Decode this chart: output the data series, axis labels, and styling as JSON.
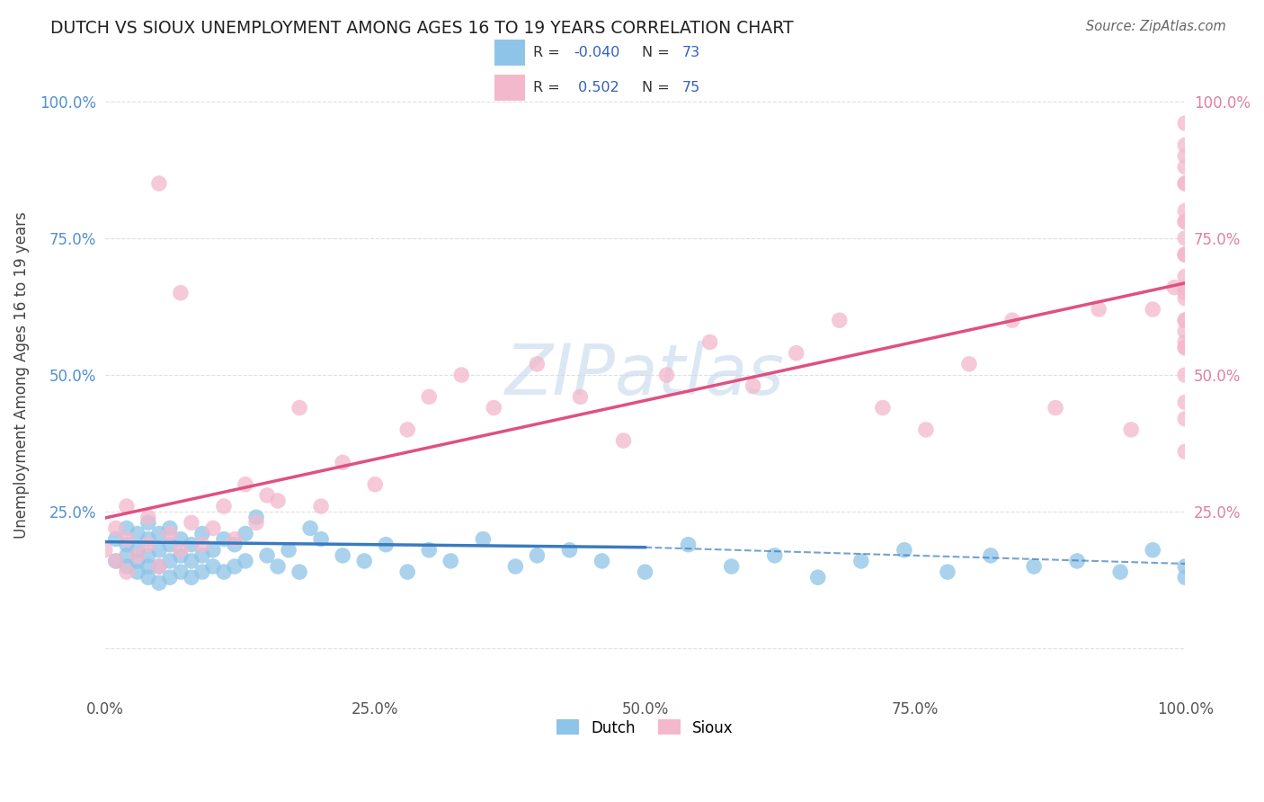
{
  "title": "DUTCH VS SIOUX UNEMPLOYMENT AMONG AGES 16 TO 19 YEARS CORRELATION CHART",
  "source": "Source: ZipAtlas.com",
  "ylabel": "Unemployment Among Ages 16 to 19 years",
  "xlim": [
    0.0,
    1.0
  ],
  "ylim": [
    -0.08,
    1.08
  ],
  "x_ticks": [
    0.0,
    0.25,
    0.5,
    0.75,
    1.0
  ],
  "x_tick_labels": [
    "0.0%",
    "25.0%",
    "50.0%",
    "75.0%",
    "100.0%"
  ],
  "y_ticks": [
    0.0,
    0.25,
    0.5,
    0.75,
    1.0
  ],
  "y_tick_labels_left": [
    "",
    "25.0%",
    "50.0%",
    "75.0%",
    "100.0%"
  ],
  "y_tick_labels_right": [
    "",
    "25.0%",
    "50.0%",
    "75.0%",
    "100.0%"
  ],
  "dutch_color": "#8ec4e8",
  "sioux_color": "#f4b8cc",
  "dutch_line_color": "#3a7bbf",
  "sioux_line_color": "#e05080",
  "dutch_R": -0.04,
  "dutch_N": 73,
  "sioux_R": 0.502,
  "sioux_N": 75,
  "legend_label_color": "#333333",
  "legend_value_color": "#3060c0",
  "watermark_color": "#c5d8ee",
  "background_color": "#ffffff",
  "grid_color": "#e0e0e0",
  "left_tick_color": "#5090d0",
  "right_tick_color": "#e080a0",
  "dutch_x": [
    0.01,
    0.01,
    0.02,
    0.02,
    0.02,
    0.02,
    0.03,
    0.03,
    0.03,
    0.03,
    0.04,
    0.04,
    0.04,
    0.04,
    0.04,
    0.05,
    0.05,
    0.05,
    0.05,
    0.06,
    0.06,
    0.06,
    0.06,
    0.07,
    0.07,
    0.07,
    0.08,
    0.08,
    0.08,
    0.09,
    0.09,
    0.09,
    0.1,
    0.1,
    0.11,
    0.11,
    0.12,
    0.12,
    0.13,
    0.13,
    0.14,
    0.15,
    0.16,
    0.17,
    0.18,
    0.19,
    0.2,
    0.22,
    0.24,
    0.26,
    0.28,
    0.3,
    0.32,
    0.35,
    0.38,
    0.4,
    0.43,
    0.46,
    0.5,
    0.54,
    0.58,
    0.62,
    0.66,
    0.7,
    0.74,
    0.78,
    0.82,
    0.86,
    0.9,
    0.94,
    0.97,
    1.0,
    1.0
  ],
  "dutch_y": [
    0.16,
    0.2,
    0.15,
    0.17,
    0.19,
    0.22,
    0.14,
    0.16,
    0.18,
    0.21,
    0.13,
    0.15,
    0.17,
    0.2,
    0.23,
    0.12,
    0.15,
    0.18,
    0.21,
    0.13,
    0.16,
    0.19,
    0.22,
    0.14,
    0.17,
    0.2,
    0.13,
    0.16,
    0.19,
    0.14,
    0.17,
    0.21,
    0.15,
    0.18,
    0.14,
    0.2,
    0.15,
    0.19,
    0.16,
    0.21,
    0.24,
    0.17,
    0.15,
    0.18,
    0.14,
    0.22,
    0.2,
    0.17,
    0.16,
    0.19,
    0.14,
    0.18,
    0.16,
    0.2,
    0.15,
    0.17,
    0.18,
    0.16,
    0.14,
    0.19,
    0.15,
    0.17,
    0.13,
    0.16,
    0.18,
    0.14,
    0.17,
    0.15,
    0.16,
    0.14,
    0.18,
    0.15,
    0.13
  ],
  "sioux_x": [
    0.0,
    0.01,
    0.01,
    0.02,
    0.02,
    0.02,
    0.03,
    0.04,
    0.04,
    0.05,
    0.05,
    0.06,
    0.07,
    0.07,
    0.08,
    0.09,
    0.1,
    0.11,
    0.12,
    0.13,
    0.14,
    0.15,
    0.16,
    0.18,
    0.2,
    0.22,
    0.25,
    0.28,
    0.3,
    0.33,
    0.36,
    0.4,
    0.44,
    0.48,
    0.52,
    0.56,
    0.6,
    0.64,
    0.68,
    0.72,
    0.76,
    0.8,
    0.84,
    0.88,
    0.92,
    0.95,
    0.97,
    0.99,
    1.0,
    1.0,
    1.0,
    1.0,
    1.0,
    1.0,
    1.0,
    1.0,
    1.0,
    1.0,
    1.0,
    1.0,
    1.0,
    1.0,
    1.0,
    1.0,
    1.0,
    1.0,
    1.0,
    1.0,
    1.0,
    1.0,
    1.0,
    1.0,
    1.0,
    1.0,
    1.0
  ],
  "sioux_y": [
    0.18,
    0.16,
    0.22,
    0.14,
    0.2,
    0.26,
    0.17,
    0.19,
    0.24,
    0.15,
    0.85,
    0.21,
    0.18,
    0.65,
    0.23,
    0.19,
    0.22,
    0.26,
    0.2,
    0.3,
    0.23,
    0.28,
    0.27,
    0.44,
    0.26,
    0.34,
    0.3,
    0.4,
    0.46,
    0.5,
    0.44,
    0.52,
    0.46,
    0.38,
    0.5,
    0.56,
    0.48,
    0.54,
    0.6,
    0.44,
    0.4,
    0.52,
    0.6,
    0.44,
    0.62,
    0.4,
    0.62,
    0.66,
    0.8,
    0.72,
    0.56,
    0.9,
    0.78,
    0.68,
    0.58,
    0.85,
    0.72,
    0.65,
    0.55,
    0.88,
    0.96,
    0.72,
    0.45,
    0.6,
    0.85,
    0.75,
    0.64,
    0.55,
    0.42,
    0.92,
    0.36,
    0.5,
    0.78,
    0.66,
    0.6
  ]
}
